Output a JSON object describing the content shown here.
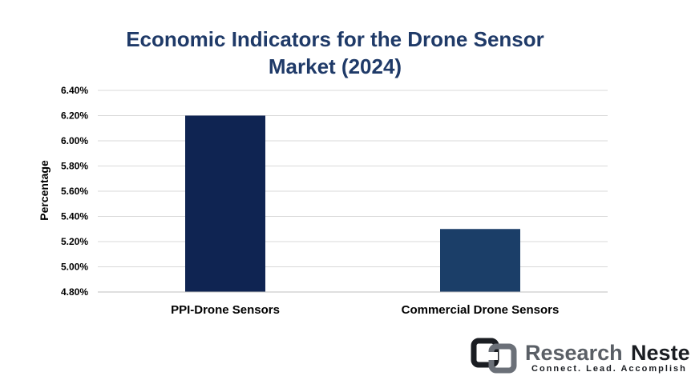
{
  "chart_data": {
    "type": "bar",
    "title": "Economic Indicators for the Drone Sensor Market (2024)",
    "title_lines": [
      "Economic Indicators for the Drone Sensor",
      "Market (2024)"
    ],
    "categories": [
      "PPI-Drone Sensors",
      "Commercial Drone Sensors"
    ],
    "values": [
      6.2,
      5.3
    ],
    "unit": "%",
    "ylabel": "Percentage",
    "xlabel": "",
    "ylim": [
      4.8,
      6.4
    ],
    "yticks": [
      "4.80%",
      "5.00%",
      "5.20%",
      "5.40%",
      "5.60%",
      "5.80%",
      "6.00%",
      "6.20%",
      "6.40%"
    ],
    "grid": true,
    "legend": false,
    "bar_colors": [
      "#0f2452",
      "#1b3e68"
    ]
  },
  "logo": {
    "name_part1": "Research",
    "name_part2": "Nester",
    "tagline": "Connect. Lead. Accomplish"
  }
}
